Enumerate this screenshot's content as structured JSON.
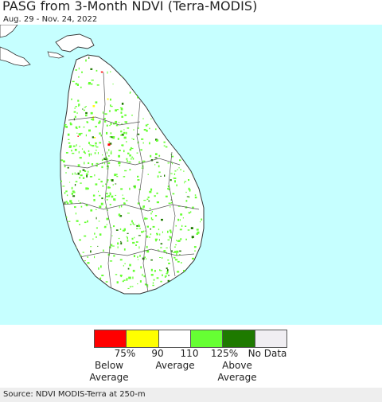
{
  "title": "PASG from 3-Month NDVI (Terra-MODIS)",
  "date_range": "Aug. 29 - Nov. 24, 2022",
  "legend": {
    "swatches": [
      {
        "color": "#ff0000"
      },
      {
        "color": "#ffff00"
      },
      {
        "color": "#ffffff"
      },
      {
        "color": "#66ff33"
      },
      {
        "color": "#1e7a00"
      },
      {
        "color": "#f0eef2"
      }
    ],
    "tick_labels": [
      "75%",
      "90",
      "110",
      "125%",
      "No Data"
    ],
    "groups": {
      "below": {
        "line1": "Below",
        "line2": "Average"
      },
      "average": "Average",
      "above": {
        "line1": "Above",
        "line2": "Average"
      }
    }
  },
  "source": "Source: NDVI MODIS-Terra at 250-m",
  "colors": {
    "ocean": "#c6ffff",
    "land": "#ffffff",
    "border": "#333333",
    "veg_light": "#66ff33",
    "veg_dark": "#1e7a00"
  }
}
